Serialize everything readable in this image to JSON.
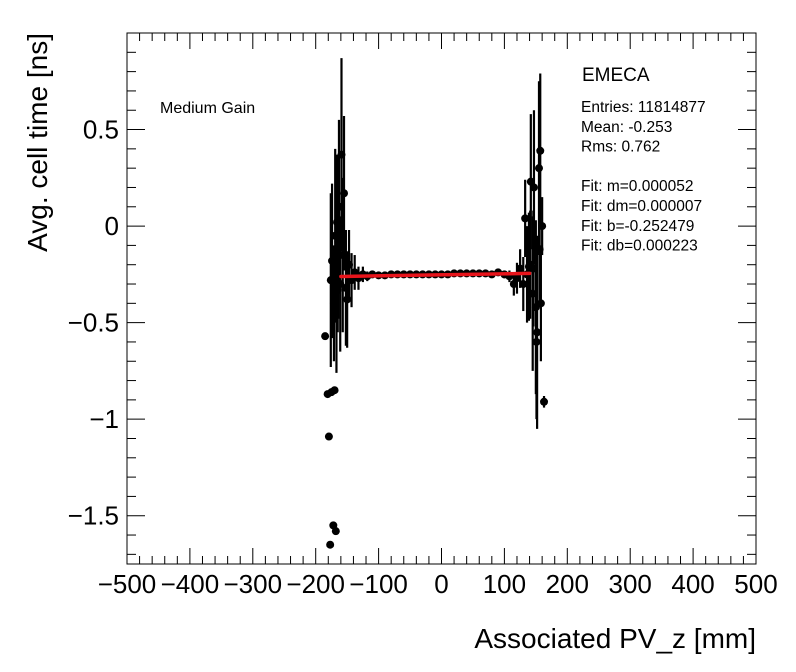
{
  "chart_data": {
    "type": "scatter",
    "title": "EMECA",
    "annotation": "Medium Gain",
    "xlabel": "Associated PV_z [mm]",
    "ylabel": "Avg. cell time [ns]",
    "xlim": [
      -500,
      500
    ],
    "ylim": [
      -1.75,
      1.0
    ],
    "x_ticks": [
      -500,
      -400,
      -300,
      -200,
      -100,
      0,
      100,
      200,
      300,
      400,
      500
    ],
    "x_tick_labels": [
      "−500",
      "−400",
      "−300",
      "−200",
      "−100",
      "0",
      "100",
      "200",
      "300",
      "400",
      "500"
    ],
    "y_ticks": [
      -1.5,
      -1.0,
      -0.5,
      0.0,
      0.5
    ],
    "y_tick_labels": [
      "−1.5",
      "−1",
      "−0.5",
      "0",
      "0.5"
    ],
    "stats": [
      "Entries: 11814877",
      "Mean: -0.253",
      "Rms: 0.762",
      "",
      "Fit: m=0.000052",
      "Fit: dm=0.000007",
      "Fit: b=-0.252479",
      "Fit: db=0.000223"
    ],
    "fit": {
      "m": 5.2e-05,
      "b": -0.252479,
      "x_range": [
        -160,
        140
      ],
      "color": "#e8141b"
    },
    "series": [
      {
        "name": "data",
        "x": [
          -185,
          -181,
          -179,
          -177,
          -175,
          -172,
          -170,
          -168,
          -166,
          -164,
          -163,
          -161,
          -159,
          -157,
          -155,
          -152,
          -150,
          -147,
          -143,
          -138,
          -132,
          -125,
          -118,
          -110,
          -100,
          -90,
          -80,
          -70,
          -60,
          -50,
          -40,
          -30,
          -20,
          -10,
          0,
          10,
          20,
          30,
          40,
          50,
          60,
          70,
          80,
          90,
          100,
          108,
          115,
          120,
          125,
          130,
          133,
          136,
          139,
          142,
          145,
          147,
          150,
          152,
          155,
          157,
          160,
          163,
          -176,
          -174,
          -171,
          -169,
          -167,
          -165,
          141,
          146,
          151,
          156,
          158
        ],
        "y": [
          -0.57,
          -0.87,
          -1.09,
          -1.65,
          -0.86,
          -1.55,
          -0.85,
          -1.58,
          0.02,
          -0.08,
          0.1,
          -0.3,
          0.37,
          -0.15,
          0.17,
          -0.32,
          -0.38,
          -0.2,
          -0.28,
          -0.24,
          -0.27,
          -0.25,
          -0.26,
          -0.25,
          -0.255,
          -0.255,
          -0.25,
          -0.25,
          -0.25,
          -0.25,
          -0.25,
          -0.25,
          -0.25,
          -0.25,
          -0.25,
          -0.25,
          -0.245,
          -0.245,
          -0.245,
          -0.245,
          -0.245,
          -0.245,
          -0.25,
          -0.24,
          -0.25,
          -0.26,
          -0.3,
          -0.27,
          -0.22,
          -0.3,
          0.04,
          -0.25,
          -0.21,
          0.23,
          -0.35,
          0.2,
          -0.42,
          -0.55,
          0.3,
          0.39,
          0.0,
          -0.91,
          -0.28,
          -0.18,
          -0.4,
          -0.05,
          -0.26,
          -0.33,
          -0.2,
          -0.22,
          -0.6,
          -0.12,
          -0.4
        ],
        "yerr": [
          0.0,
          0.0,
          0.0,
          0.0,
          0.0,
          0.0,
          0.0,
          0.0,
          0.35,
          0.4,
          0.45,
          0.35,
          0.5,
          0.4,
          0.4,
          0.3,
          0.25,
          0.18,
          0.14,
          0.09,
          0.06,
          0.04,
          0.025,
          0.015,
          0.01,
          0.01,
          0.008,
          0.008,
          0.008,
          0.008,
          0.008,
          0.008,
          0.008,
          0.008,
          0.008,
          0.008,
          0.008,
          0.008,
          0.008,
          0.008,
          0.008,
          0.01,
          0.012,
          0.015,
          0.02,
          0.03,
          0.06,
          0.08,
          0.1,
          0.14,
          0.2,
          0.25,
          0.28,
          0.35,
          0.4,
          0.4,
          0.45,
          0.5,
          0.45,
          0.4,
          0.15,
          0.03,
          0.45,
          0.4,
          0.3,
          0.45,
          0.5,
          0.22,
          0.28,
          0.3,
          0.4,
          0.3,
          0.3
        ]
      }
    ]
  }
}
